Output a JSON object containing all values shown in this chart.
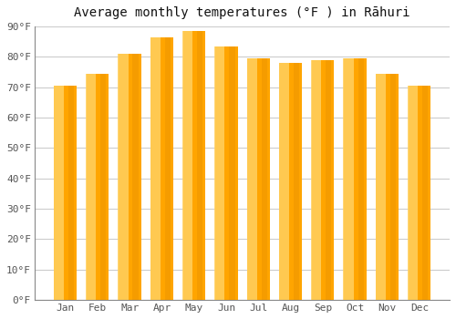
{
  "title": "Average monthly temperatures (°F ) in Rāhuri",
  "months": [
    "Jan",
    "Feb",
    "Mar",
    "Apr",
    "May",
    "Jun",
    "Jul",
    "Aug",
    "Sep",
    "Oct",
    "Nov",
    "Dec"
  ],
  "values": [
    70.5,
    74.5,
    81,
    86.5,
    88.5,
    83.5,
    79.5,
    78,
    79,
    79.5,
    74.5,
    70.5
  ],
  "ylim": [
    0,
    90
  ],
  "yticks": [
    0,
    10,
    20,
    30,
    40,
    50,
    60,
    70,
    80,
    90
  ],
  "ytick_labels": [
    "0°F",
    "10°F",
    "20°F",
    "30°F",
    "40°F",
    "50°F",
    "60°F",
    "70°F",
    "80°F",
    "90°F"
  ],
  "bar_color_main": "#FFA500",
  "bar_color_light": "#FFD060",
  "bar_color_edge": "#E08800",
  "background_color": "#ffffff",
  "plot_bg_color": "#ffffff",
  "grid_color": "#cccccc",
  "title_fontsize": 10,
  "tick_fontsize": 8,
  "bar_width": 0.7
}
